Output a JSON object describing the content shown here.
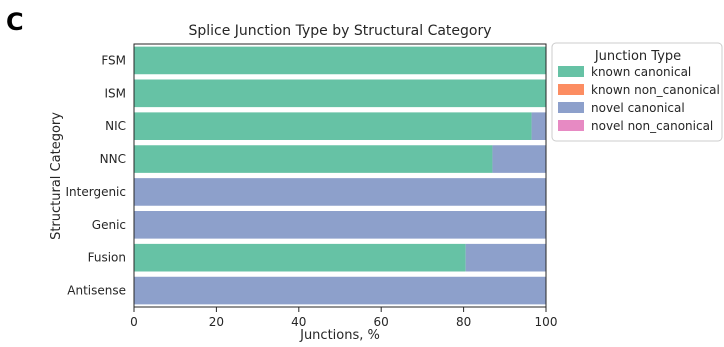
{
  "panel_label": "C",
  "chart_data": {
    "type": "bar",
    "orientation": "horizontal",
    "stacked": true,
    "title": "Splice Junction Type by Structural Category",
    "xlabel": "Junctions, %",
    "ylabel": "Structural Category",
    "xlim": [
      0,
      100
    ],
    "xticks": [
      "0",
      "20",
      "40",
      "60",
      "80",
      "100"
    ],
    "categories": [
      "FSM",
      "ISM",
      "NIC",
      "NNC",
      "Intergenic",
      "Genic",
      "Fusion",
      "Antisense"
    ],
    "series": [
      {
        "name": "known canonical",
        "color": "#66c2a5",
        "values": [
          100,
          100,
          96.5,
          87,
          0,
          0,
          80.5,
          0
        ]
      },
      {
        "name": "known non_canonical",
        "color": "#fc8d62",
        "values": [
          0,
          0,
          0,
          0,
          0,
          0,
          0,
          0
        ]
      },
      {
        "name": "novel canonical",
        "color": "#8da0cb",
        "values": [
          0,
          0,
          3.5,
          13,
          100,
          100,
          19.5,
          100
        ]
      },
      {
        "name": "novel non_canonical",
        "color": "#e78ac3",
        "values": [
          0,
          0,
          0,
          0,
          0,
          0,
          0,
          0
        ]
      }
    ],
    "grid": false,
    "legend": {
      "title": "Junction Type",
      "placement": "outside-right"
    }
  }
}
